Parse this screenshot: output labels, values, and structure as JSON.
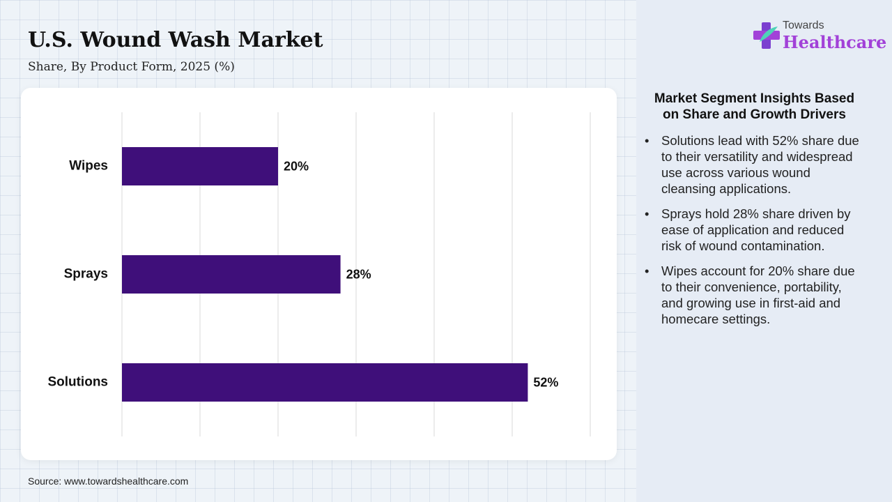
{
  "header": {
    "title": "U.S. Wound Wash Market",
    "subtitle": "Share, By Product Form, 2025 (%)"
  },
  "chart_data": {
    "type": "bar",
    "orientation": "horizontal",
    "categories": [
      "Wipes",
      "Sprays",
      "Solutions"
    ],
    "values": [
      20,
      28,
      52
    ],
    "data_labels": [
      "20%",
      "28%",
      "52%"
    ],
    "title": "U.S. Wound Wash Market",
    "subtitle": "Share, By Product Form, 2025 (%)",
    "xlabel": "",
    "ylabel": "",
    "xlim": [
      0,
      60
    ],
    "grid": true,
    "legend": "none",
    "bar_color": "#3f0f7a"
  },
  "footer": {
    "source": "Source: www.towardshealthcare.com"
  },
  "logo": {
    "line1": "Towards",
    "line2": "Healthcare"
  },
  "insights": {
    "title": "Market Segment Insights Based on Share and Growth Drivers",
    "items": [
      "Solutions lead with 52% share due to their versatility and widespread use across various wound cleansing applications.",
      "Sprays hold 28% share driven by ease of application and reduced risk of wound contamination.",
      "Wipes account for 20% share due to their convenience, portability, and growing use in first-aid and homecare settings."
    ]
  },
  "colors": {
    "bar": "#3f0f7a",
    "brand": "#a241d8",
    "panel_bg": "#e6ecf5"
  }
}
